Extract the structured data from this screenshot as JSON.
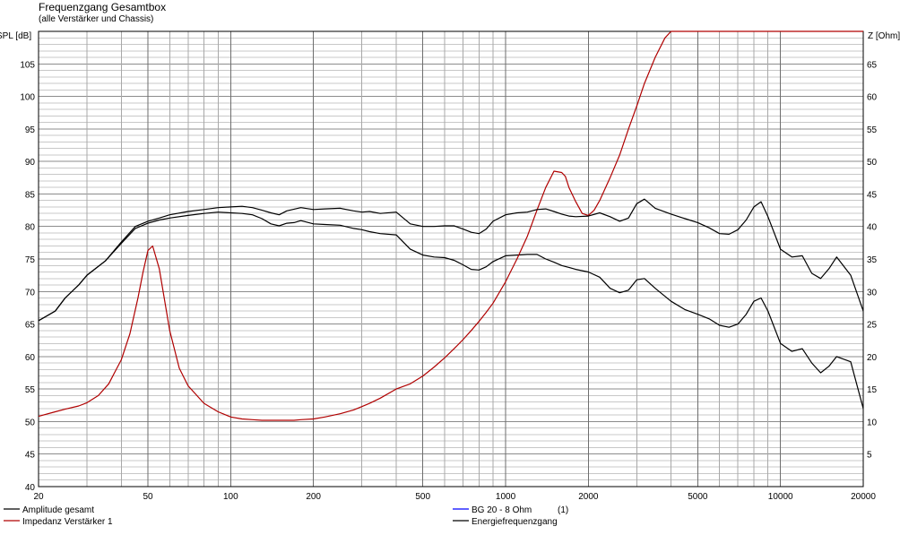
{
  "chart_data": {
    "type": "line",
    "title": "Frequenzgang Gesamtbox",
    "subtitle": "(alle Verstärker und Chassis)",
    "y_left_label": "SPL [dB]",
    "y_right_label": "Z [Ohm]",
    "x_scale": "log",
    "xlim": [
      20,
      20000
    ],
    "ylim_left": [
      40,
      110
    ],
    "ylim_right": [
      0,
      70
    ],
    "x_ticks": [
      20,
      50,
      100,
      200,
      500,
      1000,
      2000,
      5000,
      10000,
      20000
    ],
    "x_tick_labels": [
      "20",
      "50",
      "100",
      "200",
      "500",
      "1000",
      "2000",
      "5000",
      "10000",
      "20000"
    ],
    "y_left_ticks": [
      40,
      45,
      50,
      55,
      60,
      65,
      70,
      75,
      80,
      85,
      90,
      95,
      100,
      105
    ],
    "y_right_ticks": [
      5,
      10,
      15,
      20,
      25,
      30,
      35,
      40,
      45,
      50,
      55,
      60,
      65
    ],
    "grid": true,
    "legend_position": "bottom",
    "series": [
      {
        "name": "Amplitude gesamt",
        "color": "#000000",
        "axis": "left",
        "x": [
          20,
          23,
          25,
          28,
          30,
          35,
          40,
          45,
          50,
          55,
          60,
          70,
          80,
          90,
          100,
          110,
          120,
          130,
          140,
          150,
          160,
          170,
          180,
          200,
          220,
          250,
          280,
          300,
          320,
          350,
          400,
          450,
          500,
          550,
          600,
          650,
          700,
          750,
          800,
          850,
          900,
          1000,
          1100,
          1200,
          1300,
          1400,
          1500,
          1600,
          1700,
          1800,
          2000,
          2200,
          2400,
          2600,
          2800,
          3000,
          3200,
          3500,
          4000,
          4500,
          5000,
          5500,
          6000,
          6500,
          7000,
          7500,
          8000,
          8500,
          9000,
          10000,
          11000,
          12000,
          13000,
          14000,
          15000,
          16000,
          18000,
          20000
        ],
        "values": [
          65.5,
          67.0,
          69.0,
          71.0,
          72.5,
          74.7,
          77.4,
          79.7,
          80.5,
          81.0,
          81.3,
          81.7,
          82.0,
          82.2,
          82.1,
          82.0,
          81.8,
          81.2,
          80.4,
          80.1,
          80.5,
          80.6,
          80.9,
          80.4,
          80.3,
          80.2,
          79.7,
          79.5,
          79.2,
          78.9,
          78.7,
          76.5,
          75.6,
          75.3,
          75.2,
          74.8,
          74.1,
          73.4,
          73.3,
          73.8,
          74.6,
          75.5,
          75.6,
          75.7,
          75.7,
          75.0,
          74.5,
          74.0,
          73.7,
          73.4,
          73.0,
          72.2,
          70.5,
          69.8,
          70.2,
          71.8,
          72.0,
          70.5,
          68.5,
          67.2,
          66.5,
          65.8,
          64.8,
          64.5,
          65.0,
          66.5,
          68.5,
          69.0,
          67.0,
          62.0,
          60.8,
          61.2,
          59.0,
          57.5,
          58.5,
          60.0,
          59.2,
          52.0
        ]
      },
      {
        "name": "Impedanz Verstärker 1",
        "color": "#b00000",
        "axis": "right",
        "x": [
          20,
          23,
          25,
          28,
          30,
          33,
          36,
          40,
          43,
          46,
          48,
          50,
          52,
          55,
          60,
          65,
          70,
          80,
          90,
          100,
          110,
          120,
          130,
          140,
          150,
          160,
          170,
          180,
          200,
          220,
          250,
          280,
          300,
          320,
          350,
          400,
          450,
          500,
          550,
          600,
          650,
          700,
          750,
          800,
          850,
          900,
          1000,
          1100,
          1200,
          1300,
          1400,
          1500,
          1600,
          1650,
          1700,
          1800,
          1900,
          2000,
          2100,
          2200,
          2400,
          2600,
          2800,
          3000,
          3200,
          3500,
          3800,
          4000,
          5000,
          6000,
          8000,
          10000,
          12000,
          15000,
          20000
        ],
        "values": [
          10.8,
          11.5,
          11.9,
          12.4,
          12.9,
          14.0,
          15.8,
          19.5,
          23.5,
          29.0,
          33.0,
          36.3,
          37.0,
          33.5,
          24.0,
          18.2,
          15.5,
          12.8,
          11.5,
          10.7,
          10.4,
          10.3,
          10.2,
          10.2,
          10.2,
          10.2,
          10.2,
          10.3,
          10.4,
          10.7,
          11.2,
          11.8,
          12.3,
          12.8,
          13.6,
          15.0,
          15.8,
          17.0,
          18.4,
          19.8,
          21.2,
          22.6,
          24.0,
          25.4,
          26.8,
          28.2,
          31.5,
          35.0,
          38.5,
          42.5,
          46.0,
          48.5,
          48.3,
          47.7,
          46.0,
          43.8,
          42.0,
          41.7,
          42.5,
          44.0,
          47.5,
          51.0,
          55.0,
          58.5,
          62.0,
          66.0,
          69.0,
          70.0,
          70.0,
          70.0,
          70.0,
          70.0,
          70.0,
          70.0,
          70.0
        ]
      },
      {
        "name": "BG 20 - 8 Ohm",
        "color": "#0000ff",
        "axis": "left",
        "note_label": "(1)",
        "x": [],
        "values": []
      },
      {
        "name": "Energiefrequenzgang",
        "color": "#000000",
        "axis": "left",
        "x": [
          20,
          23,
          25,
          28,
          30,
          35,
          40,
          45,
          50,
          55,
          60,
          70,
          80,
          90,
          100,
          110,
          120,
          130,
          140,
          150,
          160,
          180,
          200,
          220,
          250,
          280,
          300,
          320,
          350,
          400,
          450,
          500,
          550,
          600,
          650,
          700,
          750,
          800,
          850,
          900,
          1000,
          1100,
          1200,
          1300,
          1400,
          1500,
          1600,
          1700,
          1800,
          2000,
          2200,
          2400,
          2600,
          2800,
          3000,
          3200,
          3500,
          4000,
          4500,
          5000,
          5500,
          6000,
          6500,
          7000,
          7500,
          8000,
          8500,
          9000,
          10000,
          11000,
          12000,
          13000,
          14000,
          15000,
          16000,
          18000,
          20000
        ],
        "values": [
          65.5,
          67.0,
          69.0,
          71.0,
          72.5,
          74.7,
          77.6,
          80.0,
          80.8,
          81.3,
          81.8,
          82.3,
          82.6,
          82.9,
          83.0,
          83.1,
          82.9,
          82.5,
          82.1,
          81.8,
          82.4,
          82.9,
          82.6,
          82.7,
          82.8,
          82.4,
          82.2,
          82.3,
          82.0,
          82.2,
          80.4,
          80.0,
          80.0,
          80.1,
          80.1,
          79.6,
          79.1,
          78.9,
          79.6,
          80.8,
          81.8,
          82.1,
          82.2,
          82.6,
          82.7,
          82.3,
          81.9,
          81.6,
          81.5,
          81.6,
          82.1,
          81.5,
          80.8,
          81.3,
          83.5,
          84.2,
          82.8,
          81.9,
          81.2,
          80.6,
          79.8,
          78.9,
          78.8,
          79.5,
          81.0,
          83.0,
          83.8,
          81.5,
          76.5,
          75.3,
          75.5,
          72.8,
          72.0,
          73.5,
          75.3,
          72.5,
          67.0
        ]
      }
    ]
  }
}
